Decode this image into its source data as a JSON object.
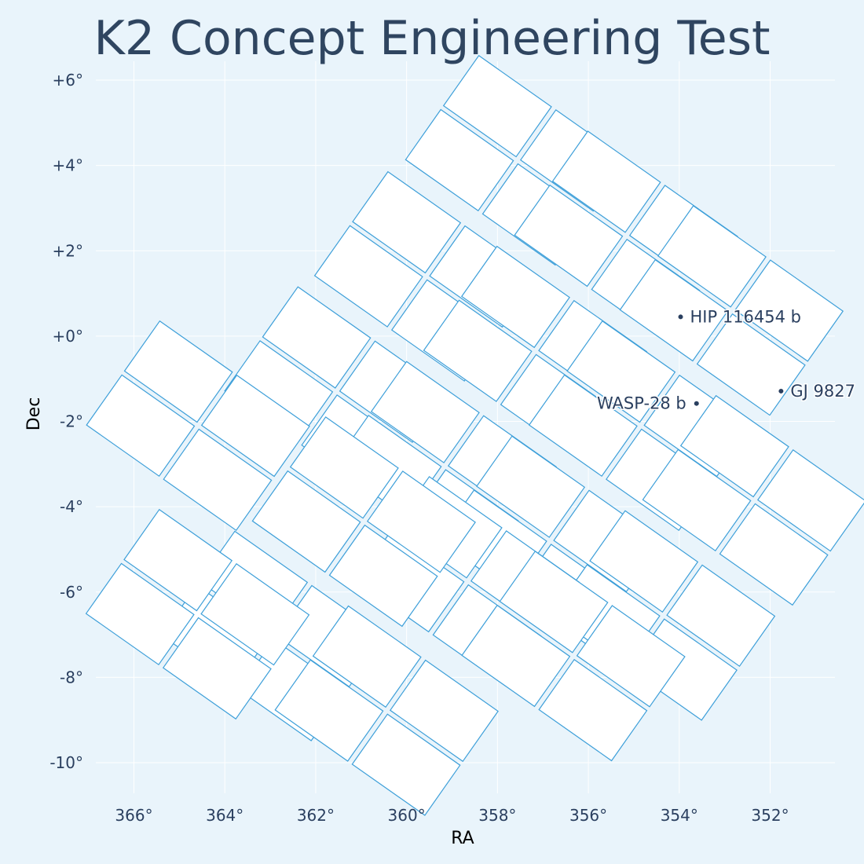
{
  "chart_data": {
    "type": "scatter",
    "title": "K2 Concept Engineering Test",
    "xlabel": "RA",
    "ylabel": "Dec",
    "x_reversed": true,
    "xlim": [
      367.1,
      350.6
    ],
    "ylim": [
      -10.8,
      6.6
    ],
    "grid": true,
    "legend": "none",
    "colors": {
      "background": "#e9f4fb",
      "grid": "#ffffff",
      "ccd_outline": "#3d9fd9",
      "ccd_fill": "#ffffff",
      "marker": "#2a3f5f",
      "text": "#2a3f5f"
    },
    "xticks": [
      {
        "value": 366,
        "label": "366°"
      },
      {
        "value": 364,
        "label": "364°"
      },
      {
        "value": 362,
        "label": "362°"
      },
      {
        "value": 360,
        "label": "360°"
      },
      {
        "value": 358,
        "label": "358°"
      },
      {
        "value": 356,
        "label": "356°"
      },
      {
        "value": 354,
        "label": "354°"
      },
      {
        "value": 352,
        "label": "352°"
      }
    ],
    "yticks": [
      {
        "value": 6,
        "label": "+6°"
      },
      {
        "value": 4,
        "label": "+4°"
      },
      {
        "value": 2,
        "label": "+2°"
      },
      {
        "value": 0,
        "label": "+0°"
      },
      {
        "value": -2,
        "label": "-2°"
      },
      {
        "value": -4,
        "label": "-4°"
      },
      {
        "value": -6,
        "label": "-6°"
      },
      {
        "value": -8,
        "label": "-8°"
      },
      {
        "value": -10,
        "label": "-10°"
      }
    ],
    "ccd_modules": [
      {
        "center": [
          357.57,
          4.12
        ]
      },
      {
        "center": [
          355.17,
          2.35
        ]
      },
      {
        "center": [
          352.85,
          0.6
        ]
      },
      {
        "center": [
          359.57,
          1.4
        ]
      },
      {
        "center": [
          357.17,
          -0.35
        ]
      },
      {
        "center": [
          354.85,
          -2.1
        ]
      },
      {
        "center": [
          352.35,
          -3.85
        ]
      },
      {
        "center": [
          361.55,
          -1.3
        ]
      },
      {
        "center": [
          359.16,
          -3.05
        ]
      },
      {
        "center": [
          356.84,
          -4.8
        ]
      },
      {
        "center": [
          354.35,
          -6.55
        ]
      },
      {
        "center": [
          364.59,
          -2.1
        ]
      },
      {
        "center": [
          358.66,
          -5.75
        ]
      },
      {
        "center": [
          356.33,
          -7.5
        ]
      },
      {
        "center": [
          360.94,
          -4.35
        ]
      },
      {
        "center": [
          362.94,
          -7.03
        ]
      },
      {
        "center": [
          360.44,
          -8.78
        ]
      },
      {
        "center": [
          364.6,
          -6.52
        ]
      }
    ],
    "targets": [
      {
        "name": "HIP 116454 b",
        "ra": 353.97,
        "dec": 0.45,
        "label_side": "right"
      },
      {
        "name": "GJ 9827",
        "ra": 351.76,
        "dec": -1.29,
        "label_side": "right"
      },
      {
        "name": "WASP-28 b",
        "ra": 353.62,
        "dec": -1.58,
        "label_side": "left"
      }
    ]
  }
}
